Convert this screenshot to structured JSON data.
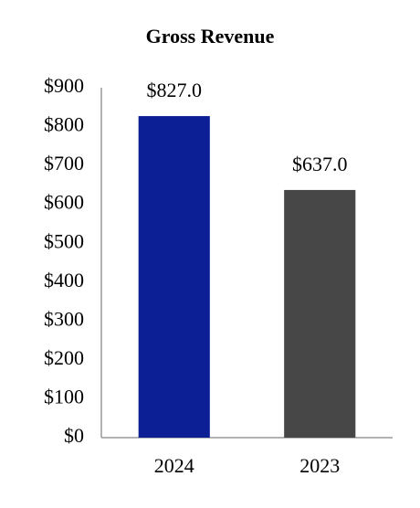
{
  "chart_data": {
    "type": "bar",
    "title": "Gross Revenue",
    "categories": [
      "2024",
      "2023"
    ],
    "values": [
      827.0,
      637.0
    ],
    "value_labels": [
      "$827.0",
      "$637.0"
    ],
    "colors": [
      "#0d1f94",
      "#474747"
    ],
    "ylim": [
      0,
      900
    ],
    "yticks": [
      {
        "value": 0,
        "label": "$0"
      },
      {
        "value": 100,
        "label": "$100"
      },
      {
        "value": 200,
        "label": "$200"
      },
      {
        "value": 300,
        "label": "$300"
      },
      {
        "value": 400,
        "label": "$400"
      },
      {
        "value": 500,
        "label": "$500"
      },
      {
        "value": 600,
        "label": "$600"
      },
      {
        "value": 700,
        "label": "$700"
      },
      {
        "value": 800,
        "label": "$800"
      },
      {
        "value": 900,
        "label": "$900"
      }
    ],
    "grid": false
  }
}
